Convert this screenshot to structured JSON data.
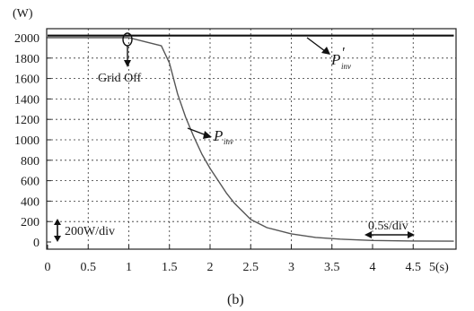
{
  "chart_data": {
    "type": "line",
    "y_unit": "(W)",
    "x_unit": "5(s)",
    "caption": "(b)",
    "xlim": [
      0,
      5
    ],
    "ylim": [
      0,
      2000
    ],
    "x_ticks": [
      "0",
      "0.5",
      "1",
      "1.5",
      "2",
      "2.5",
      "3",
      "3.5",
      "4",
      "4.5"
    ],
    "y_ticks": [
      "0",
      "200",
      "400",
      "600",
      "800",
      "1000",
      "1200",
      "1400",
      "1600",
      "1800",
      "2000"
    ],
    "grid": true,
    "series": [
      {
        "name": "P'inv",
        "x": [
          0,
          5
        ],
        "y": [
          2020,
          2020
        ]
      },
      {
        "name": "Pinv",
        "x": [
          0,
          1.0,
          1.2,
          1.4,
          1.5,
          1.6,
          1.7,
          1.8,
          1.9,
          2.0,
          2.1,
          2.2,
          2.3,
          2.4,
          2.5,
          2.7,
          3.0,
          3.3,
          3.6,
          4.0,
          4.5,
          5.0
        ],
        "y": [
          2000,
          2000,
          1960,
          1920,
          1750,
          1450,
          1220,
          1030,
          860,
          720,
          600,
          480,
          380,
          300,
          220,
          140,
          80,
          45,
          28,
          15,
          10,
          8
        ]
      }
    ],
    "annotations": {
      "grid_off": "Grid Off",
      "p_ref_main": "P",
      "p_ref_prime": "'",
      "p_ref_sub": "inv",
      "p_main": "P",
      "p_sub": "inv",
      "y_div": "200W/div",
      "x_div": "0.5s/div"
    }
  }
}
